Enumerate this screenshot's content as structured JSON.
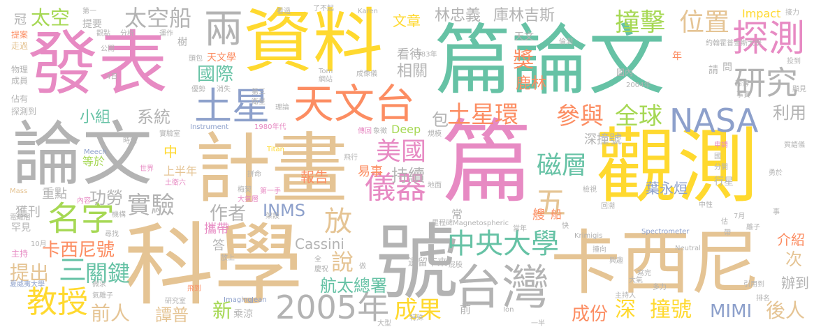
{
  "colors": {
    "pink": "#e78ac3",
    "yellow": "#ffd92f",
    "teal": "#66c2a5",
    "gray": "#b3b3b3",
    "tan": "#e5c494",
    "orange": "#fc8d62",
    "green": "#a6d854",
    "blue": "#8da0cb"
  },
  "words": [
    "發表",
    "資料",
    "篇論文",
    "論文",
    "計畫",
    "篇",
    "觀測",
    "科學",
    "號",
    "台灣",
    "卡西尼",
    "天文台",
    "土星",
    "研究",
    "探測",
    "NASA",
    "撞擊",
    "位置",
    "兩",
    "文章",
    "林忠義",
    "庫林吉斯",
    "太空",
    "太空船",
    "參與",
    "全球",
    "土星環",
    "美國",
    "中央大學",
    "磁層",
    "名字",
    "實驗",
    "INMS",
    "儀器",
    "放",
    "五",
    "2005年",
    "教授",
    "成果",
    "深",
    "撞號",
    "MIMI",
    "後人",
    "提出",
    "三",
    "關鍵",
    "卡西尼號",
    "前人",
    "譚普",
    "新",
    "航太總署",
    "成份",
    "說",
    "小組",
    "系統",
    "包",
    "鹿林",
    "獎",
    "相關",
    "國際",
    "中",
    "上半年",
    "作者",
    "功勞",
    "重點",
    "獲刊",
    "報告",
    "持續",
    "易事",
    "葉永烜",
    "Cassini",
    "Deep",
    "深撞號",
    "天文",
    "看待",
    "利用",
    "次",
    "介紹",
    "辦到",
    "Impact",
    "提要",
    "觀點",
    "分析",
    "運作",
    "冠",
    "提案",
    "走過",
    "物理",
    "成員",
    "佔有",
    "探測到",
    "罕見",
    "主持",
    "10月",
    "夏威夷大學",
    "Mass",
    "電離層",
    "Instrument",
    "1980年代",
    "Titan",
    "Meech",
    "Tom",
    "網站",
    "成像儀",
    "理論",
    "第三",
    "衛星",
    "實驗室",
    "時刻",
    "等於",
    "世界",
    "土衛六",
    "內容",
    "機構",
    "梅契",
    "架設",
    "大氣層",
    "第一手",
    "Imaging",
    "Jean",
    "乘涼",
    "大型",
    "研究室",
    "微求",
    "氣離子",
    "飛到",
    "攜帶",
    "答",
    "放上",
    "遺留下來",
    "前",
    "Ion",
    "一半",
    "主持人",
    "多力",
    "引用到",
    "排名",
    "寫完",
    "大氣",
    "撞向",
    "興趣",
    "快",
    "Spectrometer",
    "Krimigis",
    "Neutral",
    "中性",
    "回溯",
    "檢視",
    "7月",
    "離子",
    "年",
    "國內",
    "2004年",
    "稀薄",
    "事實",
    "顯見",
    "質語儀",
    "約翰霍普金斯大學",
    "投到",
    "問",
    "請",
    "行星",
    "申請",
    "國",
    "分開",
    "公開",
    "樹",
    "第一",
    "看過",
    "了不起",
    "Karen",
    "接力",
    "倫測",
    "1983年",
    "Magnetospheric",
    "里程碑",
    "當年",
    "常",
    "傳回",
    "象徵",
    "規模",
    "飛行",
    "地面",
    "全",
    "做",
    "慶祝",
    "屁股",
    "優勢",
    "消失",
    "4日",
    "天文學",
    "頭包",
    "尋找",
    "艘",
    "船",
    "估",
    "拼命",
    "事",
    "特殊",
    "勇於",
    "帶"
  ]
}
